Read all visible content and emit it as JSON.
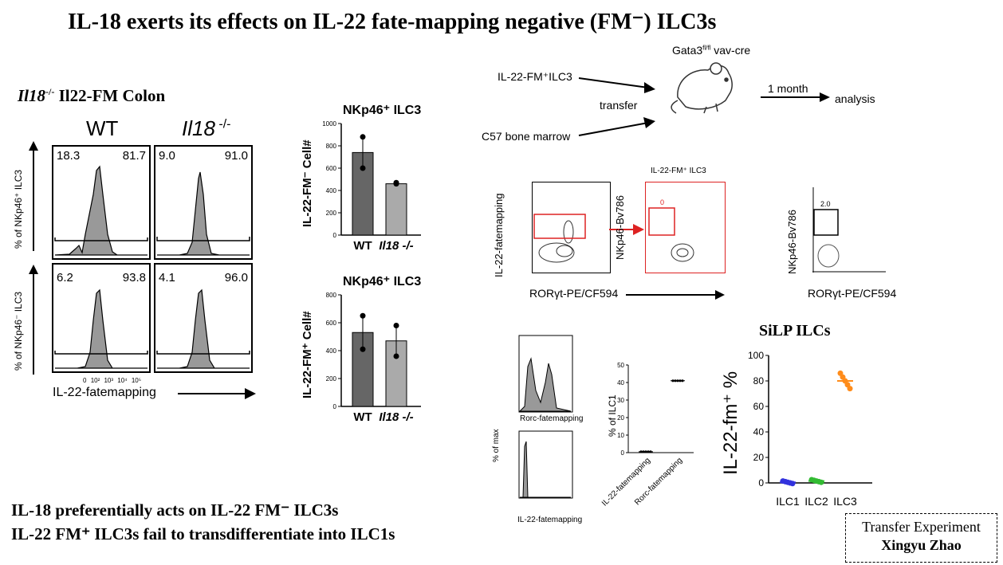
{
  "title": "IL-18 exerts its effects on IL-22 fate-mapping negative (FM⁻) ILC3s",
  "left": {
    "subtitle_italic": "Il18",
    "subtitle_sup": "-/-",
    "subtitle_rest": " Il22-FM Colon",
    "col_wt": "WT",
    "col_ko": "Il18",
    "col_ko_sup": " -/-",
    "row1_label": "% of NKp46⁺ ILC3",
    "row2_label": "% of NKp46⁻ ILC3",
    "xlabel": "IL-22-fatemapping",
    "panels": [
      {
        "left": "18.3",
        "right": "81.7"
      },
      {
        "left": "9.0",
        "right": "91.0"
      },
      {
        "left": "6.2",
        "right": "93.8"
      },
      {
        "left": "4.1",
        "right": "96.0"
      }
    ],
    "ticks": [
      "0",
      "10²",
      "10³",
      "10⁴",
      "10⁵"
    ]
  },
  "bar_charts": [
    {
      "title": "NKp46⁺ ILC3",
      "ylabel": "IL-22-FM⁻ Cell#",
      "categories": [
        "WT",
        "Il18 -/-"
      ],
      "values": [
        740,
        460
      ],
      "points": [
        [
          880,
          600
        ],
        [
          470,
          460
        ]
      ],
      "yticks": [
        "0",
        "200",
        "400",
        "600",
        "800",
        "1000"
      ]
    },
    {
      "title": "NKp46⁺ ILC3",
      "ylabel": "IL-22-FM⁺ Cell#",
      "categories": [
        "WT",
        "Il18 -/-"
      ],
      "values": [
        530,
        470
      ],
      "points": [
        [
          650,
          410
        ],
        [
          580,
          360
        ]
      ],
      "yticks": [
        "0",
        "200",
        "400",
        "600",
        "800"
      ]
    }
  ],
  "transfer": {
    "label1": "IL-22-FM⁺ILC3",
    "label_transfer": "transfer",
    "label2": "C57 bone marrow",
    "mouse": "Gata3",
    "mouse_sup": "fl/fl",
    "mouse_rest": " vav-cre",
    "month": "1 month",
    "analysis": "analysis"
  },
  "flow": {
    "p1_ylabel": "IL-22-fatemapping",
    "p2_title": "IL-22-FM⁺ ILC3",
    "p2_ylabel": "NKp46-Bv786",
    "p2_gate": "0",
    "p3_ylabel": "NKp46-Bv786",
    "p3_gate": "2.0",
    "xlabel": "RORγt-PE/CF594",
    "xlabel2": "RORγt-PE/CF594"
  },
  "hist2": {
    "ylabel": "% of max",
    "xlabel1": "Rorc-fatemapping",
    "xlabel2": "IL-22-fatemapping"
  },
  "dotplot": {
    "ylabel": "% of ILC1",
    "categories": [
      "IL-22-fatemapping",
      "Rorc-fatemapping"
    ],
    "values": [
      0.5,
      41
    ],
    "yticks": [
      "0",
      "10",
      "20",
      "30",
      "40",
      "50"
    ]
  },
  "silp": {
    "title": "SiLP  ILCs",
    "ylabel": "IL-22-fm⁺ %",
    "categories": [
      "ILC1",
      "ILC2",
      "ILC3"
    ],
    "values": [
      0.5,
      1.5,
      80
    ],
    "colors": [
      "#3333dd",
      "#33bb33",
      "#ff8c1a"
    ],
    "yticks": [
      "0",
      "20",
      "40",
      "60",
      "80",
      "100"
    ]
  },
  "bottom1": "IL-18 preferentially acts on IL-22 FM⁻ ILC3s",
  "bottom2": "IL-22 FM⁺ ILC3s fail to transdifferentiate into ILC1s",
  "credit1": "Transfer Experiment",
  "credit2": "Xingyu Zhao",
  "chart_data": [
    {
      "type": "bar",
      "title": "NKp46⁺ ILC3",
      "categories": [
        "WT",
        "Il18 -/-"
      ],
      "values": [
        740,
        460
      ],
      "ylabel": "IL-22-FM⁻ Cell#",
      "ylim": [
        0,
        1000
      ]
    },
    {
      "type": "bar",
      "title": "NKp46⁺ ILC3",
      "categories": [
        "WT",
        "Il18 -/-"
      ],
      "values": [
        530,
        470
      ],
      "ylabel": "IL-22-FM⁺ Cell#",
      "ylim": [
        0,
        800
      ]
    },
    {
      "type": "scatter",
      "categories": [
        "IL-22-fatemapping",
        "Rorc-fatemapping"
      ],
      "values": [
        0.5,
        41
      ],
      "ylabel": "% of ILC1",
      "ylim": [
        0,
        50
      ]
    },
    {
      "type": "scatter",
      "title": "SiLP  ILCs",
      "categories": [
        "ILC1",
        "ILC2",
        "ILC3"
      ],
      "values": [
        0.5,
        1.5,
        80
      ],
      "ylabel": "IL-22-fm⁺ %",
      "ylim": [
        0,
        100
      ]
    }
  ]
}
